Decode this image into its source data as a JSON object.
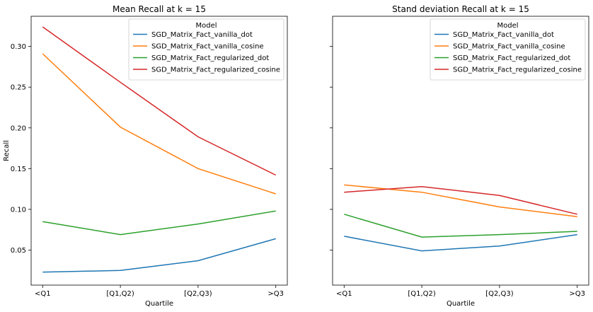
{
  "chart_data": [
    {
      "type": "line",
      "title": "Mean Recall at k = 15",
      "xlabel": "Quartile",
      "ylabel": "Recall",
      "categories": [
        "<Q1",
        "[Q1,Q2)",
        "[Q2,Q3)",
        ">Q3"
      ],
      "ylim": [
        0.007,
        0.337
      ],
      "yticks": [
        0.05,
        0.1,
        0.15,
        0.2,
        0.25,
        0.3
      ],
      "ytick_labels": [
        "0.05",
        "0.10",
        "0.15",
        "0.20",
        "0.25",
        "0.30"
      ],
      "legend_title": "Model",
      "legend_position": "top-right",
      "grid": false,
      "series": [
        {
          "name": "SGD_Matrix_Fact_vanilla_dot",
          "color": "#1f77b4",
          "values": [
            0.023,
            0.025,
            0.037,
            0.064
          ]
        },
        {
          "name": "SGD_Matrix_Fact_vanilla_cosine",
          "color": "#ff7f0e",
          "values": [
            0.291,
            0.201,
            0.15,
            0.119
          ]
        },
        {
          "name": "SGD_Matrix_Fact_regularized_dot",
          "color": "#2ca02c",
          "values": [
            0.085,
            0.069,
            0.082,
            0.098
          ]
        },
        {
          "name": "SGD_Matrix_Fact_regularized_cosine",
          "color": "#d62728",
          "values": [
            0.324,
            0.256,
            0.189,
            0.142
          ]
        }
      ]
    },
    {
      "type": "line",
      "title": "Stand deviation Recall at k = 15",
      "xlabel": "Quartile",
      "ylabel": "",
      "categories": [
        "<Q1",
        "[Q1,Q2)",
        "[Q2,Q3)",
        ">Q3"
      ],
      "ylim": [
        0.007,
        0.337
      ],
      "shared_y": true,
      "legend_title": "Model",
      "legend_position": "top-right",
      "grid": false,
      "series": [
        {
          "name": "SGD_Matrix_Fact_vanilla_dot",
          "color": "#1f77b4",
          "values": [
            0.067,
            0.049,
            0.055,
            0.069
          ]
        },
        {
          "name": "SGD_Matrix_Fact_vanilla_cosine",
          "color": "#ff7f0e",
          "values": [
            0.13,
            0.121,
            0.103,
            0.091
          ]
        },
        {
          "name": "SGD_Matrix_Fact_regularized_dot",
          "color": "#2ca02c",
          "values": [
            0.094,
            0.066,
            0.069,
            0.073
          ]
        },
        {
          "name": "SGD_Matrix_Fact_regularized_cosine",
          "color": "#d62728",
          "values": [
            0.121,
            0.128,
            0.117,
            0.094
          ]
        }
      ]
    }
  ]
}
